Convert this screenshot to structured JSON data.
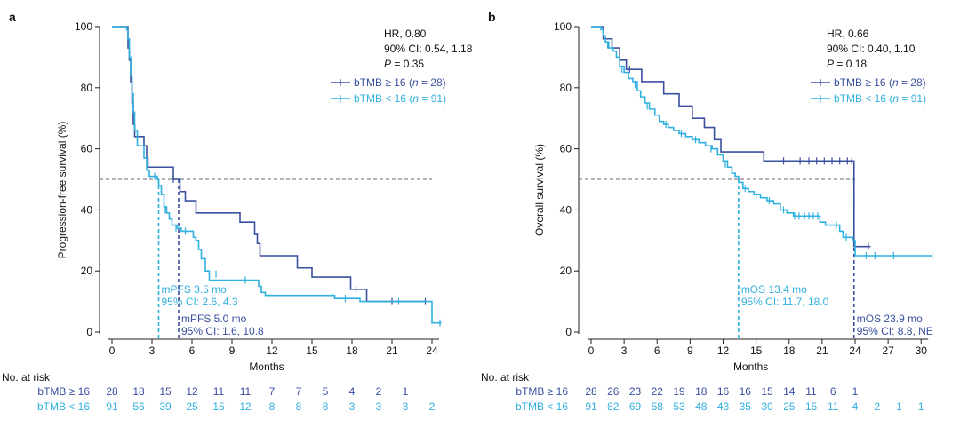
{
  "colors": {
    "high": "#3a4fa0",
    "low": "#30b0e0",
    "axis": "#222222",
    "ref": "#888888"
  },
  "chart_data": [
    {
      "type": "line",
      "panel_label": "a",
      "ylabel": "Progression-free survival (%)",
      "xlabel": "Months",
      "xlim": [
        0,
        25
      ],
      "ylim": [
        0,
        100
      ],
      "xticks": [
        0,
        3,
        6,
        9,
        12,
        15,
        18,
        21,
        24
      ],
      "yticks": [
        0,
        20,
        40,
        60,
        80,
        100
      ],
      "reference_y": 50,
      "stats": {
        "hr": "HR, 0.80",
        "ci": "90% CI: 0.54, 1.18",
        "p_label": "P",
        "p_value": " = 0.35"
      },
      "legend": [
        {
          "series": "high",
          "prefix": "bTMB ≥ 16 (",
          "n_label": "n",
          "n_value": " = 28)"
        },
        {
          "series": "low",
          "prefix": "bTMB < 16 (",
          "n_label": "n",
          "n_value": " = 91)"
        }
      ],
      "median_marks": [
        {
          "series": "low",
          "x": 3.5,
          "label_lines": [
            "mPFS 3.5 mo",
            "95% CI: 2.6, 4.3"
          ]
        },
        {
          "series": "high",
          "x": 5.0,
          "label_lines": [
            "mPFS 5.0 mo",
            "95% CI: 1.6, 10.8"
          ]
        }
      ],
      "series": [
        {
          "key": "high",
          "name": "bTMB ≥ 16",
          "points": [
            [
              0,
              100
            ],
            [
              1.1,
              100
            ],
            [
              1.2,
              93
            ],
            [
              1.3,
              89
            ],
            [
              1.4,
              82
            ],
            [
              1.5,
              75
            ],
            [
              1.6,
              68
            ],
            [
              1.7,
              64
            ],
            [
              2.3,
              64
            ],
            [
              2.4,
              61
            ],
            [
              2.6,
              57
            ],
            [
              2.7,
              54
            ],
            [
              3.3,
              54
            ],
            [
              4.5,
              54
            ],
            [
              4.6,
              50
            ],
            [
              5.0,
              50
            ],
            [
              5.1,
              46
            ],
            [
              5.5,
              43
            ],
            [
              6.2,
              43
            ],
            [
              6.3,
              39
            ],
            [
              9.5,
              39
            ],
            [
              9.6,
              36
            ],
            [
              10.6,
              36
            ],
            [
              10.7,
              32
            ],
            [
              10.9,
              29
            ],
            [
              11.1,
              25
            ],
            [
              13.8,
              25
            ],
            [
              13.9,
              21
            ],
            [
              14.9,
              21
            ],
            [
              15.0,
              18
            ],
            [
              17.8,
              18
            ],
            [
              17.9,
              14
            ],
            [
              19.0,
              14
            ],
            [
              19.1,
              10
            ],
            [
              23.5,
              10
            ]
          ],
          "censor": [
            [
              4.6,
              50
            ],
            [
              18.3,
              14
            ],
            [
              21.0,
              10
            ],
            [
              23.5,
              10
            ]
          ],
          "at_risk": [
            28,
            18,
            15,
            12,
            11,
            11,
            7,
            7,
            5,
            4,
            2,
            1
          ]
        },
        {
          "key": "low",
          "name": "bTMB < 16",
          "points": [
            [
              0,
              100
            ],
            [
              1.0,
              100
            ],
            [
              1.1,
              99
            ],
            [
              1.2,
              96
            ],
            [
              1.3,
              90
            ],
            [
              1.4,
              84
            ],
            [
              1.5,
              78
            ],
            [
              1.6,
              72
            ],
            [
              1.7,
              66
            ],
            [
              1.9,
              61
            ],
            [
              2.2,
              61
            ],
            [
              2.4,
              57
            ],
            [
              2.6,
              53
            ],
            [
              2.8,
              51
            ],
            [
              3.3,
              51
            ],
            [
              3.4,
              50
            ],
            [
              3.5,
              48
            ],
            [
              3.7,
              45
            ],
            [
              3.9,
              41
            ],
            [
              4.1,
              39
            ],
            [
              4.3,
              37
            ],
            [
              4.5,
              35
            ],
            [
              4.9,
              34
            ],
            [
              5.2,
              33
            ],
            [
              6.0,
              33
            ],
            [
              6.1,
              31
            ],
            [
              6.3,
              30
            ],
            [
              6.5,
              27
            ],
            [
              6.7,
              24
            ],
            [
              7.0,
              20
            ],
            [
              7.3,
              17
            ],
            [
              10.8,
              17
            ],
            [
              11.0,
              15
            ],
            [
              11.2,
              13
            ],
            [
              11.5,
              12
            ],
            [
              16.5,
              12
            ],
            [
              16.7,
              11
            ],
            [
              18.5,
              11
            ],
            [
              18.6,
              10
            ],
            [
              23.8,
              10
            ],
            [
              24.0,
              3
            ],
            [
              24.7,
              3
            ]
          ],
          "censor": [
            [
              3.2,
              51
            ],
            [
              4.0,
              40
            ],
            [
              4.8,
              34
            ],
            [
              5.5,
              33
            ],
            [
              7.8,
              19
            ],
            [
              10.0,
              17
            ],
            [
              16.5,
              12
            ],
            [
              17.5,
              11
            ],
            [
              21.5,
              10
            ],
            [
              24.6,
              3
            ]
          ],
          "at_risk": [
            91,
            56,
            39,
            25,
            15,
            12,
            8,
            8,
            8,
            3,
            3,
            3,
            2
          ]
        }
      ],
      "risk_table": {
        "title": "No. at risk",
        "rows": [
          "bTMB ≥ 16",
          "bTMB < 16"
        ],
        "times": [
          0,
          2,
          4,
          6,
          8,
          10,
          12,
          14,
          16,
          18,
          20,
          22,
          24
        ]
      }
    },
    {
      "type": "line",
      "panel_label": "b",
      "ylabel": "Overall survival (%)",
      "xlabel": "Months",
      "xlim": [
        0,
        32
      ],
      "ylim": [
        0,
        100
      ],
      "xticks": [
        0,
        3,
        6,
        9,
        12,
        15,
        18,
        21,
        24,
        27,
        30
      ],
      "yticks": [
        0,
        20,
        40,
        60,
        80,
        100
      ],
      "reference_y": 50,
      "stats": {
        "hr": "HR, 0.66",
        "ci": "90% CI: 0.40, 1.10",
        "p_label": "P",
        "p_value": " = 0.18"
      },
      "legend": [
        {
          "series": "high",
          "prefix": "bTMB ≥ 16 (",
          "n_label": "n",
          "n_value": " = 28)"
        },
        {
          "series": "low",
          "prefix": "bTMB < 16 (",
          "n_label": "n",
          "n_value": " = 91)"
        }
      ],
      "median_marks": [
        {
          "series": "low",
          "x": 13.4,
          "label_lines": [
            "mOS 13.4 mo",
            "95% CI: 11.7, 18.0"
          ]
        },
        {
          "series": "high",
          "x": 23.9,
          "label_lines": [
            "mOS 23.9 mo",
            "95% CI: 8.8, NE"
          ]
        }
      ],
      "series": [
        {
          "key": "high",
          "name": "bTMB ≥ 16",
          "points": [
            [
              0,
              100
            ],
            [
              1.0,
              100
            ],
            [
              1.1,
              96
            ],
            [
              1.8,
              96
            ],
            [
              1.9,
              93
            ],
            [
              2.5,
              93
            ],
            [
              2.6,
              89
            ],
            [
              3.1,
              89
            ],
            [
              3.2,
              86
            ],
            [
              4.5,
              86
            ],
            [
              4.6,
              82
            ],
            [
              6.5,
              82
            ],
            [
              6.6,
              78
            ],
            [
              7.9,
              78
            ],
            [
              8.0,
              74
            ],
            [
              9.1,
              74
            ],
            [
              9.2,
              70
            ],
            [
              10.2,
              70
            ],
            [
              10.3,
              67
            ],
            [
              11.1,
              67
            ],
            [
              11.2,
              63
            ],
            [
              11.7,
              63
            ],
            [
              11.8,
              59
            ],
            [
              15.6,
              59
            ],
            [
              15.7,
              56
            ],
            [
              23.8,
              56
            ],
            [
              23.9,
              28
            ],
            [
              25.4,
              28
            ]
          ],
          "censor": [
            [
              3.5,
              86
            ],
            [
              17.5,
              56
            ],
            [
              19.0,
              56
            ],
            [
              19.8,
              56
            ],
            [
              20.5,
              56
            ],
            [
              21.2,
              56
            ],
            [
              21.9,
              56
            ],
            [
              22.6,
              56
            ],
            [
              23.3,
              56
            ],
            [
              23.7,
              56
            ],
            [
              25.2,
              28
            ]
          ],
          "at_risk": [
            28,
            26,
            23,
            22,
            19,
            18,
            16,
            16,
            15,
            14,
            11,
            6,
            1
          ]
        },
        {
          "key": "low",
          "name": "bTMB < 16",
          "points": [
            [
              0,
              100
            ],
            [
              0.8,
              100
            ],
            [
              0.9,
              99
            ],
            [
              1.1,
              97
            ],
            [
              1.3,
              95
            ],
            [
              1.6,
              93
            ],
            [
              2.0,
              92
            ],
            [
              2.3,
              90
            ],
            [
              2.6,
              87
            ],
            [
              3.0,
              85
            ],
            [
              3.4,
              83
            ],
            [
              3.8,
              82
            ],
            [
              4.2,
              79
            ],
            [
              4.5,
              77
            ],
            [
              4.9,
              75
            ],
            [
              5.3,
              73
            ],
            [
              5.8,
              71
            ],
            [
              6.2,
              69
            ],
            [
              6.6,
              68
            ],
            [
              7.0,
              67
            ],
            [
              7.5,
              66
            ],
            [
              8.0,
              65
            ],
            [
              8.6,
              64
            ],
            [
              9.2,
              63
            ],
            [
              9.8,
              62
            ],
            [
              10.4,
              61
            ],
            [
              11.0,
              60
            ],
            [
              11.5,
              58
            ],
            [
              12.0,
              56
            ],
            [
              12.4,
              54
            ],
            [
              12.8,
              52
            ],
            [
              13.1,
              51
            ],
            [
              13.4,
              49
            ],
            [
              13.8,
              47
            ],
            [
              14.3,
              46
            ],
            [
              14.8,
              45
            ],
            [
              15.4,
              44
            ],
            [
              16.0,
              43
            ],
            [
              16.6,
              42
            ],
            [
              17.2,
              40
            ],
            [
              17.8,
              39
            ],
            [
              18.4,
              38
            ],
            [
              20.6,
              38
            ],
            [
              20.8,
              36
            ],
            [
              21.3,
              35
            ],
            [
              22.5,
              35
            ],
            [
              22.6,
              33
            ],
            [
              22.9,
              31
            ],
            [
              23.5,
              31
            ],
            [
              23.8,
              30
            ],
            [
              24.0,
              25
            ],
            [
              31.0,
              25
            ]
          ],
          "censor": [
            [
              1.5,
              94
            ],
            [
              2.8,
              86
            ],
            [
              4.0,
              81
            ],
            [
              5.1,
              74
            ],
            [
              6.8,
              68
            ],
            [
              8.2,
              65
            ],
            [
              9.5,
              63
            ],
            [
              10.9,
              60
            ],
            [
              12.2,
              55
            ],
            [
              14.0,
              47
            ],
            [
              15.0,
              45
            ],
            [
              16.2,
              43
            ],
            [
              17.5,
              40
            ],
            [
              18.5,
              38
            ],
            [
              18.9,
              38
            ],
            [
              19.4,
              38
            ],
            [
              19.8,
              38
            ],
            [
              20.2,
              38
            ],
            [
              20.6,
              38
            ],
            [
              22.3,
              35
            ],
            [
              23.2,
              31
            ],
            [
              25.0,
              25
            ],
            [
              25.8,
              25
            ],
            [
              27.5,
              25
            ],
            [
              31.0,
              25
            ]
          ],
          "at_risk": [
            91,
            82,
            69,
            58,
            53,
            48,
            43,
            35,
            30,
            25,
            15,
            11,
            4,
            2,
            1,
            1
          ]
        }
      ],
      "risk_table": {
        "title": "No. at risk",
        "rows": [
          "bTMB ≥ 16",
          "bTMB < 16"
        ],
        "times": [
          0,
          2,
          4,
          6,
          8,
          10,
          12,
          14,
          16,
          18,
          20,
          22,
          24,
          26,
          28,
          30
        ]
      }
    }
  ]
}
